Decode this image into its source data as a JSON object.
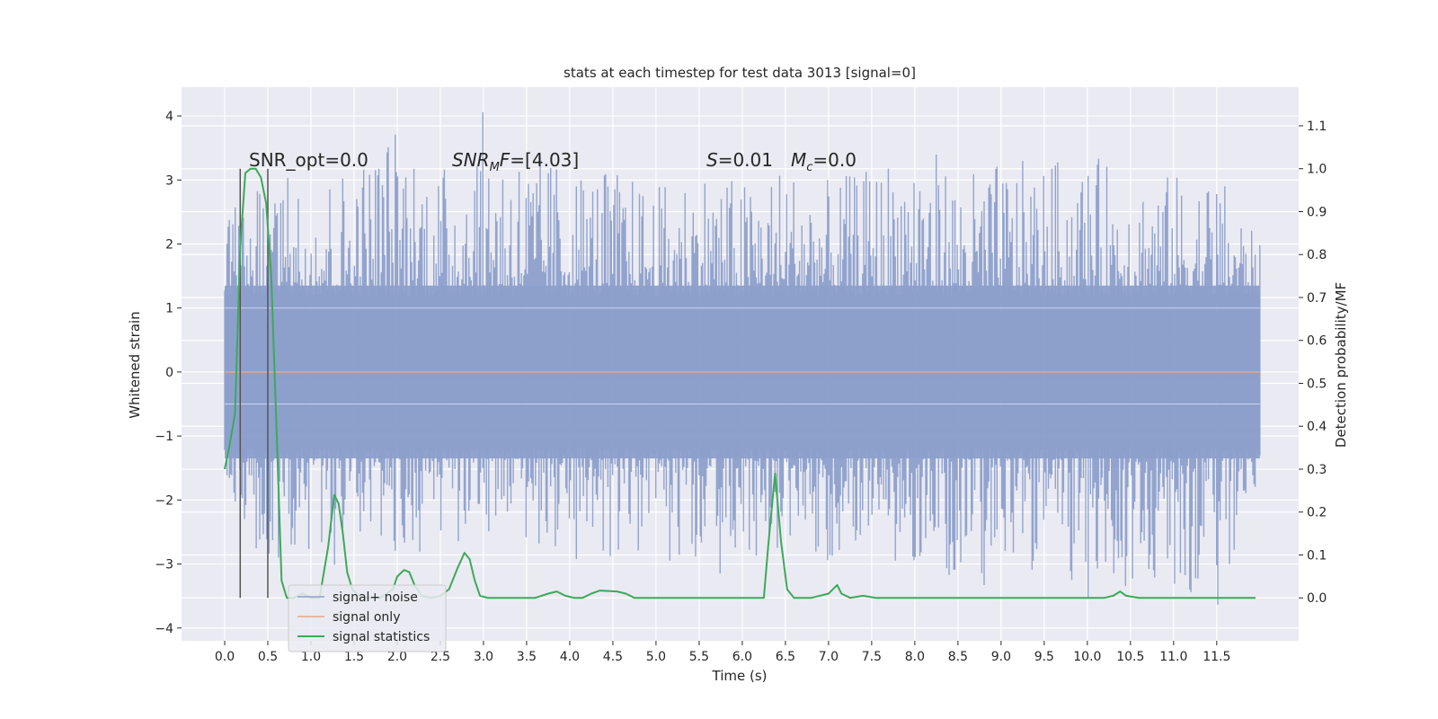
{
  "chart_data": {
    "type": "line",
    "title": "stats at each timestep for test data 3013 [signal=0]",
    "xlabel": "Time (s)",
    "ylabel": "Whitened strain",
    "y2label": "Detection probability/MF",
    "xlim": [
      -0.5,
      12.45
    ],
    "ylim": [
      -4.2,
      4.45
    ],
    "y2lim": [
      -0.1,
      1.19
    ],
    "x_ticks": [
      0.0,
      0.5,
      1.0,
      1.5,
      2.0,
      2.5,
      3.0,
      3.5,
      4.0,
      4.5,
      5.0,
      5.5,
      6.0,
      6.5,
      7.0,
      7.5,
      8.0,
      8.5,
      9.0,
      9.5,
      10.0,
      10.5,
      11.0,
      11.5
    ],
    "x_tick_labels": [
      "0.0",
      "0.5",
      "1.0",
      "1.5",
      "2.0",
      "2.5",
      "3.0",
      "3.5",
      "4.0",
      "4.5",
      "5.0",
      "5.5",
      "6.0",
      "6.5",
      "7.0",
      "7.5",
      "8.0",
      "8.5",
      "9.0",
      "9.5",
      "10.0",
      "10.5",
      "11.0",
      "11.5"
    ],
    "y_ticks": [
      -4,
      -3,
      -2,
      -1,
      0,
      1,
      2,
      3,
      4
    ],
    "y_tick_labels": [
      "−4",
      "−3",
      "−2",
      "−1",
      "0",
      "1",
      "2",
      "3",
      "4"
    ],
    "y2_ticks": [
      0.0,
      0.1,
      0.2,
      0.3,
      0.4,
      0.5,
      0.6,
      0.7,
      0.8,
      0.9,
      1.0,
      1.1
    ],
    "y2_tick_labels": [
      "0.0",
      "0.1",
      "0.2",
      "0.3",
      "0.4",
      "0.5",
      "0.6",
      "0.7",
      "0.8",
      "0.9",
      "1.0",
      "1.1"
    ],
    "grid": true,
    "legend_position": "lower-left",
    "annotations": {
      "snr_opt": "SNR_opt=0.0",
      "snr_mf": "SNR_MF=[4.03]",
      "s_stat": "S=0.01",
      "mc": "M_c=0.0"
    },
    "vertical_markers": [
      0.18,
      0.5
    ],
    "series": [
      {
        "name": "signal+ noise",
        "color": "#8da0cb",
        "axis": "left",
        "description_range": "dense noise, x from 0 to 12, amplitude mostly within ±2 with spikes to ±4",
        "envelope": {
          "x": [
            0.0,
            0.5,
            1.0,
            1.5,
            2.0,
            2.5,
            3.0,
            3.5,
            4.0,
            4.5,
            5.0,
            5.5,
            6.0,
            6.5,
            7.0,
            7.5,
            8.0,
            8.5,
            9.0,
            9.5,
            10.0,
            10.5,
            11.0,
            11.5,
            12.0
          ],
          "upper": [
            2.5,
            3.0,
            3.1,
            3.3,
            4.0,
            3.2,
            4.1,
            3.5,
            3.3,
            3.2,
            2.9,
            3.3,
            3.0,
            3.3,
            3.0,
            3.2,
            3.8,
            3.1,
            3.3,
            3.3,
            3.4,
            3.2,
            3.1,
            3.2,
            2.0
          ],
          "lower": [
            -2.1,
            -3.0,
            -3.0,
            -3.1,
            -2.9,
            -2.8,
            -2.6,
            -2.7,
            -3.0,
            -2.9,
            -3.0,
            -3.1,
            -3.2,
            -2.9,
            -3.0,
            -3.0,
            -3.0,
            -3.3,
            -3.4,
            -3.1,
            -3.7,
            -3.3,
            -3.4,
            -3.7,
            -1.6
          ]
        }
      },
      {
        "name": "signal only",
        "color": "#e5a68a",
        "axis": "left",
        "x": [
          0.0,
          12.0
        ],
        "y": [
          0.0,
          0.0
        ]
      },
      {
        "name": "signal statistics",
        "color": "#3da95a",
        "axis": "right",
        "x": [
          0.0,
          0.06,
          0.12,
          0.18,
          0.24,
          0.3,
          0.36,
          0.42,
          0.48,
          0.54,
          0.6,
          0.66,
          0.72,
          0.8,
          0.9,
          1.0,
          1.1,
          1.2,
          1.27,
          1.32,
          1.37,
          1.42,
          1.48,
          1.55,
          1.65,
          1.8,
          1.95,
          2.0,
          2.08,
          2.14,
          2.2,
          2.28,
          2.4,
          2.5,
          2.6,
          2.7,
          2.78,
          2.84,
          2.9,
          2.96,
          3.05,
          3.2,
          3.4,
          3.6,
          3.75,
          3.85,
          3.95,
          4.05,
          4.15,
          4.25,
          4.35,
          4.55,
          4.65,
          4.75,
          5.0,
          5.5,
          6.0,
          6.25,
          6.3,
          6.38,
          6.45,
          6.52,
          6.6,
          6.8,
          7.0,
          7.05,
          7.1,
          7.15,
          7.25,
          7.4,
          7.55,
          7.7,
          8.0,
          8.5,
          9.0,
          9.5,
          10.0,
          10.2,
          10.3,
          10.38,
          10.45,
          10.6,
          11.0,
          11.5,
          11.95
        ],
        "y": [
          0.3,
          0.36,
          0.43,
          0.82,
          0.99,
          1.0,
          1.0,
          0.98,
          0.92,
          0.75,
          0.4,
          0.04,
          0.0,
          0.0,
          0.01,
          0.0,
          0.0,
          0.12,
          0.24,
          0.22,
          0.15,
          0.06,
          0.02,
          0.005,
          0.0,
          0.0,
          0.02,
          0.05,
          0.065,
          0.06,
          0.03,
          0.005,
          0.0,
          0.005,
          0.02,
          0.07,
          0.105,
          0.09,
          0.04,
          0.005,
          0.0,
          0.0,
          0.0,
          0.0,
          0.01,
          0.015,
          0.005,
          0.0,
          0.0,
          0.01,
          0.017,
          0.015,
          0.01,
          0.0,
          0.0,
          0.0,
          0.0,
          0.0,
          0.12,
          0.29,
          0.13,
          0.02,
          0.0,
          0.0,
          0.01,
          0.02,
          0.03,
          0.01,
          0.0,
          0.005,
          0.0,
          0.0,
          0.0,
          0.0,
          0.0,
          0.0,
          0.0,
          0.0,
          0.005,
          0.015,
          0.005,
          0.0,
          0.0,
          0.0,
          0.0
        ]
      }
    ]
  }
}
